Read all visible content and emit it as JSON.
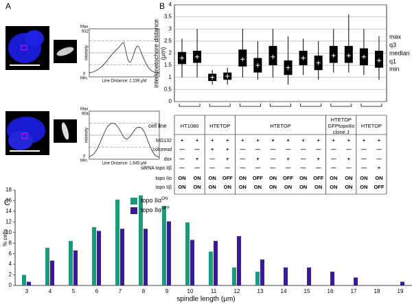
{
  "panel_labels": [
    "A",
    "B",
    "C"
  ],
  "panel_a": {
    "plots": [
      {
        "max_label": "Max.",
        "max_value": 932,
        "min_label": "Min.",
        "min_value": 0,
        "ylabel": "intensity",
        "caption": "Line Distance: 2.239 μM"
      },
      {
        "max_label": "Max.",
        "max_value": 904,
        "min_label": "Min.",
        "min_value": 0,
        "ylabel": "intensity",
        "caption": "Line Distance: 1.645 μM"
      }
    ]
  },
  "chart_data": [
    {
      "type": "box",
      "ylabel": [
        "interkinetochore distance",
        "(μm)"
      ],
      "ylim": [
        0,
        4
      ],
      "yticks": [
        0,
        0.5,
        1,
        1.5,
        2,
        2.5,
        3,
        3.5,
        4
      ],
      "grid": true,
      "color": "#000000",
      "legend": [
        "max",
        "q3",
        "median",
        "q1",
        "min"
      ],
      "max": [
        2.6,
        3.0,
        1.3,
        1.4,
        3.0,
        2.5,
        3.0,
        2.7,
        2.6,
        2.5,
        3.0,
        3.6,
        3.0,
        2.7
      ],
      "q3": [
        2.05,
        2.1,
        1.15,
        1.2,
        2.15,
        1.8,
        2.3,
        1.7,
        2.1,
        1.9,
        2.3,
        2.3,
        2.2,
        2.1
      ],
      "median": [
        1.8,
        1.85,
        1.0,
        1.05,
        1.75,
        1.5,
        1.85,
        1.4,
        1.8,
        1.6,
        1.9,
        1.9,
        1.85,
        1.7
      ],
      "q1": [
        1.55,
        1.6,
        0.85,
        0.9,
        1.45,
        1.2,
        1.5,
        1.1,
        1.5,
        1.3,
        1.6,
        1.6,
        1.5,
        1.4
      ],
      "min": [
        1.0,
        1.0,
        0.7,
        0.7,
        1.0,
        0.9,
        1.0,
        0.7,
        1.1,
        0.9,
        1.2,
        1.2,
        1.1,
        0.9
      ]
    },
    {
      "type": "bar",
      "xlabel": "spindle length (μm)",
      "ylabel": "% cells",
      "categories": [
        "3",
        "4",
        "5",
        "6",
        "7",
        "8",
        "9",
        "10",
        "11",
        "12",
        "13",
        "14",
        "15",
        "16",
        "17",
        "18",
        "19"
      ],
      "ylim": [
        0,
        18
      ],
      "yticks": [
        0,
        2,
        4,
        6,
        8,
        10,
        12,
        14,
        16,
        18
      ],
      "series": [
        {
          "name": "topo IIα",
          "name_superscript": "ON",
          "color": "#1a9b7c",
          "values": [
            2,
            7.1,
            8.4,
            11,
            16.2,
            17,
            15,
            11.9,
            6.4,
            3.4,
            2.6,
            0,
            0,
            0,
            0,
            0,
            0
          ]
        },
        {
          "name": "topo IIα",
          "name_superscript": "OFF",
          "color": "#3a1a99",
          "values": [
            0.7,
            4.7,
            6.6,
            10.3,
            10.7,
            10.7,
            12.1,
            8.6,
            8.4,
            9.3,
            4.9,
            3.4,
            3.4,
            2.6,
            1.5,
            0,
            0.7
          ]
        }
      ]
    }
  ],
  "panel_b_table": {
    "cell_line_label": "cell line",
    "cell_line_groups": [
      {
        "lines": [
          "HT1080"
        ],
        "columns": 2
      },
      {
        "lines": [
          "HTETOP"
        ],
        "columns": 2
      },
      {
        "lines": [
          "HTETOP"
        ],
        "columns": 6
      },
      {
        "lines": [
          "HTETOP",
          "GFPtopoIIα",
          "clone J"
        ],
        "columns": 2
      },
      {
        "lines": [
          "HTETOP"
        ],
        "columns": 2
      }
    ],
    "rows": [
      {
        "label": "MG132",
        "values": [
          "+",
          "+",
          "+",
          "+",
          "+",
          "+",
          "+",
          "+",
          "+",
          "+",
          "+",
          "+",
          "+",
          "+"
        ]
      },
      {
        "label": "colcemid",
        "values": [
          "—",
          "—",
          "+",
          "+",
          "—",
          "—",
          "—",
          "—",
          "—",
          "—",
          "—",
          "—",
          "—",
          "—"
        ]
      },
      {
        "label": "dox",
        "values": [
          "—",
          "+",
          "—",
          "+",
          "—",
          "+",
          "—",
          "+",
          "—",
          "+",
          "—",
          "+",
          "—",
          "—"
        ]
      },
      {
        "label": "siRNA topo IIβ",
        "values": [
          "—",
          "—",
          "—",
          "—",
          "—",
          "—",
          "—",
          "—",
          "—",
          "—",
          "—",
          "—",
          "—",
          "+"
        ]
      },
      {
        "label": "topo IIα",
        "values": [
          "ON",
          "ON",
          "ON",
          "OFF",
          "ON",
          "OFF",
          "ON",
          "OFF",
          "ON",
          "OFF",
          "ON",
          "ON",
          "ON",
          "ON"
        ]
      },
      {
        "label": "topo IIβ",
        "values": [
          "ON",
          "ON",
          "ON",
          "ON",
          "ON",
          "ON",
          "ON",
          "ON",
          "ON",
          "ON",
          "ON",
          "ON",
          "ON",
          "OFF"
        ]
      }
    ]
  }
}
